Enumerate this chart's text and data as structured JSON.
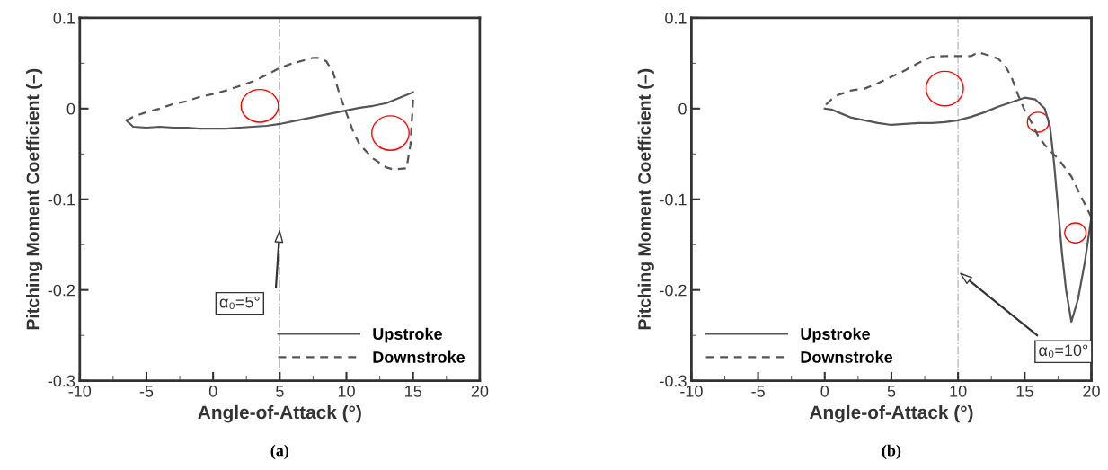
{
  "chart_data": [
    {
      "type": "line",
      "xlabel": "Angle-of-Attack (°)",
      "ylabel": "Pitching Moment Coefficient (–)",
      "xlim": [
        -10,
        20
      ],
      "xticks": [
        -10,
        -5,
        0,
        5,
        10,
        15,
        20
      ],
      "ylim": [
        -0.3,
        0.1
      ],
      "yticks": [
        -0.3,
        -0.2,
        -0.1,
        0,
        0.1
      ],
      "grid": false,
      "legend": "bottom right",
      "series": [
        {
          "name": "Upstroke",
          "color": "#555555",
          "line_style": "solid",
          "x": [
            -6.5,
            -6,
            -5,
            -4,
            -3,
            -2,
            -1,
            0,
            1,
            2,
            3,
            4,
            5,
            6,
            7,
            8,
            9,
            10,
            11,
            12,
            13,
            14,
            15
          ],
          "values": [
            -0.013,
            -0.02,
            -0.021,
            -0.02,
            -0.021,
            -0.021,
            -0.022,
            -0.022,
            -0.022,
            -0.021,
            -0.02,
            -0.019,
            -0.017,
            -0.014,
            -0.011,
            -0.008,
            -0.005,
            -0.002,
            0.001,
            0.003,
            0.006,
            0.012,
            0.018
          ]
        },
        {
          "name": "Downstroke",
          "color": "#555555",
          "line_style": "dashed",
          "x": [
            15,
            14.8,
            14.5,
            13.5,
            13,
            12,
            11,
            10.5,
            10,
            9.5,
            9,
            8.5,
            8,
            7.5,
            6,
            5,
            4,
            3,
            2,
            1,
            0,
            -1,
            -2,
            -3,
            -4,
            -5,
            -6,
            -6.5
          ],
          "values": [
            0.01,
            -0.04,
            -0.066,
            -0.067,
            -0.065,
            -0.055,
            -0.04,
            -0.025,
            -0.005,
            0.015,
            0.04,
            0.052,
            0.056,
            0.056,
            0.05,
            0.045,
            0.037,
            0.03,
            0.025,
            0.02,
            0.016,
            0.013,
            0.008,
            0.005,
            0.0,
            -0.004,
            -0.009,
            -0.013
          ]
        }
      ],
      "ref_lines": [
        {
          "axis": "x",
          "value": 5,
          "color": "#bbbbbb",
          "line_style": "dashdot"
        }
      ],
      "annotations": [
        "α₀=5°",
        "(a)"
      ]
    },
    {
      "type": "line",
      "xlabel": "Angle-of-Attack (°)",
      "ylabel": "Pitching Moment Coefficient (–)",
      "xlim": [
        -10,
        20
      ],
      "xticks": [
        -10,
        -5,
        0,
        5,
        10,
        15,
        20
      ],
      "ylim": [
        -0.3,
        0.1
      ],
      "yticks": [
        -0.3,
        -0.2,
        -0.1,
        0,
        0.1
      ],
      "grid": false,
      "legend": "bottom left",
      "series": [
        {
          "name": "Upstroke",
          "color": "#555555",
          "line_style": "solid",
          "x": [
            0,
            0.5,
            1,
            2,
            3,
            4,
            5,
            6,
            7,
            8,
            9,
            10,
            11,
            12,
            13,
            14,
            15,
            15.8,
            16.5,
            16.9,
            17.2,
            17.5,
            17.8,
            18.1,
            18.5,
            19,
            19.5,
            20
          ],
          "values": [
            0.0,
            -0.001,
            -0.004,
            -0.01,
            -0.013,
            -0.016,
            -0.018,
            -0.017,
            -0.016,
            -0.016,
            -0.015,
            -0.013,
            -0.009,
            -0.004,
            0.002,
            0.007,
            0.012,
            0.01,
            0.0,
            -0.02,
            -0.06,
            -0.11,
            -0.16,
            -0.2,
            -0.235,
            -0.21,
            -0.17,
            -0.12
          ]
        },
        {
          "name": "Downstroke",
          "color": "#555555",
          "line_style": "dashed",
          "x": [
            20,
            19.5,
            19,
            18.5,
            18,
            17.5,
            17,
            16.5,
            16,
            15.5,
            15,
            14.5,
            14,
            13.5,
            13,
            12,
            11.5,
            11,
            10,
            9,
            8,
            7,
            6,
            5,
            4,
            3,
            2,
            1,
            0.5,
            0
          ],
          "values": [
            -0.12,
            -0.105,
            -0.09,
            -0.075,
            -0.065,
            -0.055,
            -0.048,
            -0.04,
            -0.03,
            -0.015,
            -0.002,
            0.015,
            0.035,
            0.048,
            0.055,
            0.06,
            0.062,
            0.058,
            0.058,
            0.058,
            0.057,
            0.05,
            0.042,
            0.035,
            0.028,
            0.022,
            0.02,
            0.015,
            0.01,
            0.003
          ]
        }
      ],
      "ref_lines": [
        {
          "axis": "x",
          "value": 10,
          "color": "#bbbbbb",
          "line_style": "dashdot"
        }
      ],
      "annotations": [
        "α₀=10°",
        "(b)"
      ]
    }
  ]
}
